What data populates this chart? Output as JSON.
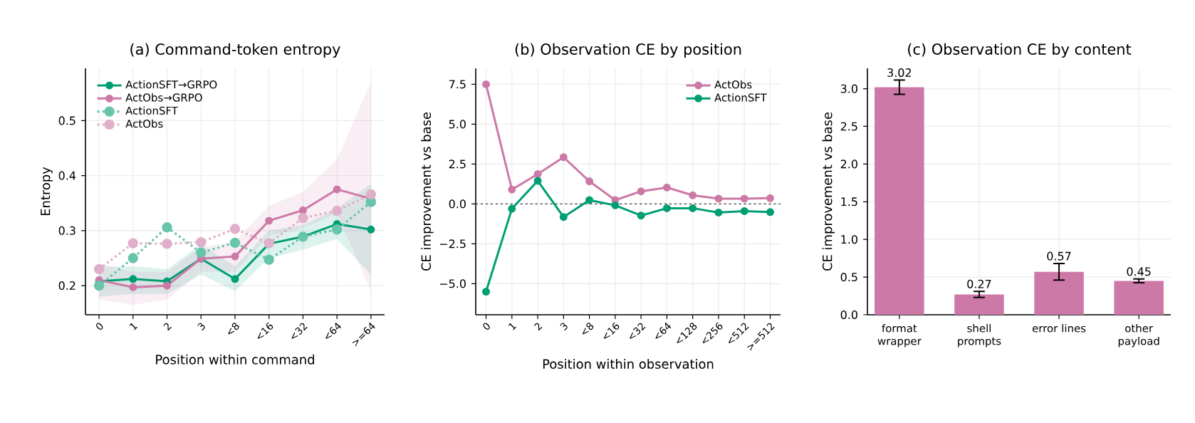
{
  "chart_data": [
    {
      "type": "line",
      "title": "(a) Command-token entropy",
      "xlabel": "Position within command",
      "ylabel": "Entropy",
      "categories": [
        "0",
        "1",
        "2",
        "3",
        "<8",
        "<16",
        "<32",
        "<64",
        ">=64"
      ],
      "ylim": [
        0.147,
        0.595
      ],
      "yticks": [
        0.2,
        0.3,
        0.4,
        0.5
      ],
      "grid": true,
      "legend": "top left",
      "marker": "circle",
      "series": [
        {
          "name": "ActionSFT→GRPO",
          "color": "#009e73",
          "line_style": "solid",
          "values": [
            0.208,
            0.212,
            0.208,
            0.249,
            0.212,
            0.276,
            0.289,
            0.312,
            0.302
          ],
          "lower": [
            0.18,
            0.185,
            0.185,
            0.22,
            0.19,
            0.25,
            0.265,
            0.285,
            0.22
          ],
          "upper": [
            0.235,
            0.235,
            0.23,
            0.275,
            0.235,
            0.3,
            0.31,
            0.34,
            0.385
          ]
        },
        {
          "name": "ActObs→GRPO",
          "color": "#cc79a7",
          "line_style": "solid",
          "values": [
            0.21,
            0.197,
            0.2,
            0.249,
            0.253,
            0.318,
            0.337,
            0.375,
            0.358
          ],
          "lower": [
            0.175,
            0.165,
            0.175,
            0.225,
            0.225,
            0.29,
            0.305,
            0.33,
            0.19
          ],
          "upper": [
            0.24,
            0.225,
            0.225,
            0.27,
            0.28,
            0.345,
            0.37,
            0.43,
            0.57
          ]
        },
        {
          "name": "ActionSFT",
          "color": "#66c5ab",
          "line_style": "dotted",
          "values": [
            0.2,
            0.25,
            0.306,
            0.26,
            0.278,
            0.247,
            0.289,
            0.302,
            0.352
          ]
        },
        {
          "name": "ActObs",
          "color": "#e0afca",
          "line_style": "dotted",
          "values": [
            0.23,
            0.277,
            0.276,
            0.279,
            0.303,
            0.277,
            0.323,
            0.336,
            0.366
          ]
        }
      ]
    },
    {
      "type": "line",
      "title": "(b) Observation CE by position",
      "xlabel": "Position within observation",
      "ylabel": "CE improvement vs base",
      "categories": [
        "0",
        "1",
        "2",
        "3",
        "<8",
        "<16",
        "<32",
        "<64",
        "<128",
        "<256",
        "<512",
        ">=512"
      ],
      "ylim": [
        -6.95,
        8.5
      ],
      "yticks": [
        {
          "value": -5,
          "label": "−5.0"
        },
        {
          "value": -2.5,
          "label": "−2.5"
        },
        {
          "value": 0,
          "label": "0.0"
        },
        2.5,
        {
          "value": 5,
          "label": "5.0"
        },
        7.5
      ],
      "grid": true,
      "legend": "top right",
      "marker": "circle",
      "ref_lines": [
        {
          "axis": "y",
          "value": 0,
          "color": "#333333",
          "line_style": "dotted"
        }
      ],
      "series": [
        {
          "name": "ActObs",
          "color": "#cc79a7",
          "values": [
            7.5,
            0.9,
            1.87,
            2.93,
            1.42,
            0.24,
            0.79,
            1.03,
            0.54,
            0.33,
            0.33,
            0.36
          ]
        },
        {
          "name": "ActionSFT",
          "color": "#009e73",
          "values": [
            -5.5,
            -0.3,
            1.45,
            -0.82,
            0.24,
            -0.09,
            -0.73,
            -0.27,
            -0.27,
            -0.54,
            -0.45,
            -0.51
          ]
        }
      ]
    },
    {
      "type": "bar",
      "title": "(c) Observation CE by content",
      "ylabel": "CE improvement vs base",
      "categories": [
        "format wrapper",
        "shell prompts",
        "error lines",
        "other payload"
      ],
      "values": [
        3.02,
        0.27,
        0.57,
        0.45
      ],
      "errors": [
        0.095,
        0.04,
        0.11,
        0.025
      ],
      "color": "#cc79a7",
      "data_labels": true,
      "grid": true,
      "ylim": [
        0,
        3.27
      ],
      "yticks": [
        {
          "value": 0,
          "label": "0.0"
        },
        {
          "value": 0.5,
          "label": "0.5"
        },
        {
          "value": 1,
          "label": "1.0"
        },
        {
          "value": 1.5,
          "label": "1.5"
        },
        {
          "value": 2,
          "label": "2.0"
        },
        {
          "value": 2.5,
          "label": "2.5"
        },
        {
          "value": 3,
          "label": "3.0"
        }
      ]
    }
  ]
}
